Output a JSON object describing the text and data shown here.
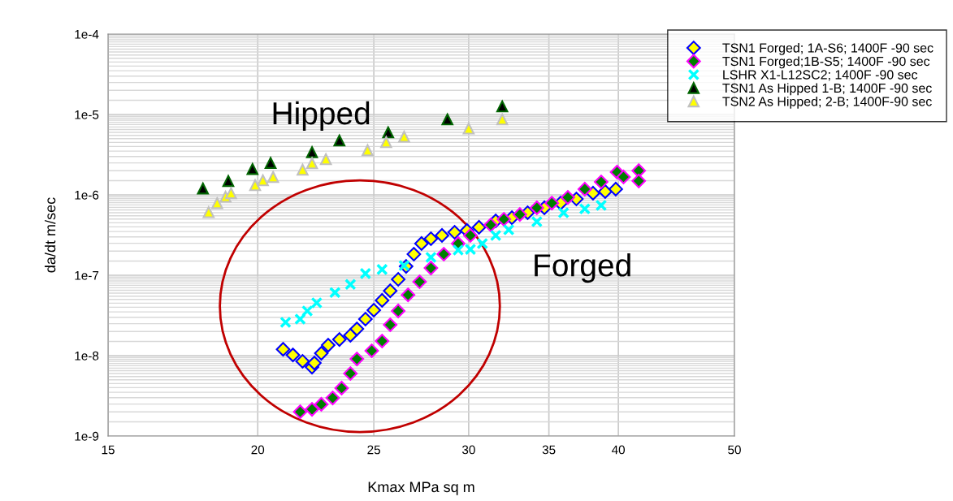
{
  "chart_data": {
    "type": "scatter",
    "xlabel": "Kmax MPa sq m",
    "ylabel": "da/dt m/sec",
    "log": "xy",
    "grid": true,
    "legend": "top right",
    "xlim": [
      15,
      50
    ],
    "xticks": [
      15,
      20,
      25,
      30,
      35,
      40,
      50
    ],
    "ylim": [
      1e-09,
      0.0001
    ],
    "yticks": [
      {
        "value": 1e-09,
        "label": "1e-9"
      },
      {
        "value": 1e-08,
        "label": "1e-8"
      },
      {
        "value": 1e-07,
        "label": "1e-7"
      },
      {
        "value": 1e-06,
        "label": "1e-6"
      },
      {
        "value": 1e-05,
        "label": "1e-5"
      },
      {
        "value": 0.0001,
        "label": "1e-4"
      }
    ],
    "annotations": [
      "Hipped",
      "Forged"
    ],
    "series": [
      {
        "name": "TSN1 Forged; 1A-S6; 1400F -90 sec",
        "color": "#ffff00",
        "marker": "diamond",
        "x": [
          21.0,
          21.4,
          21.8,
          22.2,
          22.3,
          22.6,
          22.9,
          23.4,
          23.9,
          24.2,
          24.6,
          25.0,
          25.4,
          25.8,
          26.2,
          26.6,
          27.0,
          27.4,
          27.9,
          28.5,
          29.2,
          29.9,
          30.6,
          31.6,
          32.6,
          33.6,
          34.7,
          35.8,
          36.9,
          38.1,
          39.0,
          39.8
        ],
        "values": [
          1.2e-08,
          1.02e-08,
          8.5e-09,
          7.2e-09,
          8.1e-09,
          1.07e-08,
          1.35e-08,
          1.59e-08,
          1.79e-08,
          2.15e-08,
          2.85e-08,
          3.68e-08,
          4.87e-08,
          6.4e-08,
          8.9e-08,
          1.29e-07,
          1.83e-07,
          2.48e-07,
          2.85e-07,
          3.13e-07,
          3.43e-07,
          3.6e-07,
          3.95e-07,
          4.75e-07,
          5.2e-07,
          6e-07,
          6.9e-07,
          7.9e-07,
          8.9e-07,
          1.05e-06,
          1.1e-06,
          1.18e-06
        ]
      },
      {
        "name": "TSN1 Forged;1B-S5; 1400F -90 sec",
        "color": "#007f00",
        "marker": "diamond",
        "x": [
          21.7,
          22.2,
          22.6,
          23.1,
          23.5,
          23.9,
          24.2,
          24.9,
          25.4,
          25.8,
          26.2,
          26.7,
          27.3,
          27.9,
          28.6,
          29.4,
          30.1,
          31.3,
          32.1,
          33.1,
          34.2,
          35.2,
          36.3,
          37.5,
          38.7,
          39.9,
          40.4,
          41.6,
          41.6
        ],
        "values": [
          2e-09,
          2.15e-09,
          2.48e-09,
          2.98e-09,
          3.95e-09,
          6e-09,
          9.1e-09,
          1.15e-08,
          1.52e-08,
          2.42e-08,
          3.6e-08,
          5.7e-08,
          8.3e-08,
          1.23e-07,
          1.83e-07,
          2.48e-07,
          3.13e-07,
          4.23e-07,
          4.98e-07,
          5.7e-07,
          6.9e-07,
          7.9e-07,
          9.3e-07,
          1.18e-06,
          1.45e-06,
          1.92e-06,
          1.67e-06,
          2e-06,
          1.49e-06
        ]
      },
      {
        "name": "LSHR X1-L12SC2; 1400F -90 sec",
        "color": "#00ffff",
        "marker": "cross",
        "x": [
          21.1,
          21.7,
          22.0,
          22.4,
          23.2,
          23.9,
          24.6,
          25.4,
          26.5,
          27.9,
          29.4,
          30.1,
          30.8,
          31.6,
          32.4,
          34.2,
          36.0,
          37.5,
          38.7
        ],
        "values": [
          2.6e-08,
          2.85e-08,
          3.6e-08,
          4.54e-08,
          6.1e-08,
          7.7e-08,
          1.05e-07,
          1.18e-07,
          1.32e-07,
          1.67e-07,
          2.06e-07,
          2.1e-07,
          2.48e-07,
          3.13e-07,
          3.68e-07,
          4.64e-07,
          6e-07,
          6.7e-07,
          7.4e-07
        ]
      },
      {
        "name": "TSN1 As Hipped 1-B; 1400F -90 sec",
        "color": "#000000",
        "marker": "triangle",
        "x": [
          18.0,
          18.9,
          19.8,
          20.5,
          22.2,
          23.4,
          25.7,
          28.8,
          32.0
        ],
        "values": [
          1.2e-06,
          1.49e-06,
          2.1e-06,
          2.5e-06,
          3.4e-06,
          4.75e-06,
          6e-06,
          8.7e-06,
          1.26e-05
        ]
      },
      {
        "name": "TSN2 As Hipped; 2-B; 1400F-90 sec",
        "color": "#ffff00",
        "marker": "triangle",
        "x": [
          18.2,
          18.5,
          18.8,
          19.0,
          19.9,
          20.2,
          20.6,
          21.8,
          22.2,
          22.8,
          24.7,
          25.6,
          26.5,
          30.0,
          32.0
        ],
        "values": [
          6.1e-07,
          7.9e-07,
          9.5e-07,
          1.05e-06,
          1.32e-06,
          1.52e-06,
          1.67e-06,
          2.06e-06,
          2.48e-06,
          2.78e-06,
          3.6e-06,
          4.54e-06,
          5.3e-06,
          6.7e-06,
          8.7e-06
        ]
      }
    ]
  }
}
